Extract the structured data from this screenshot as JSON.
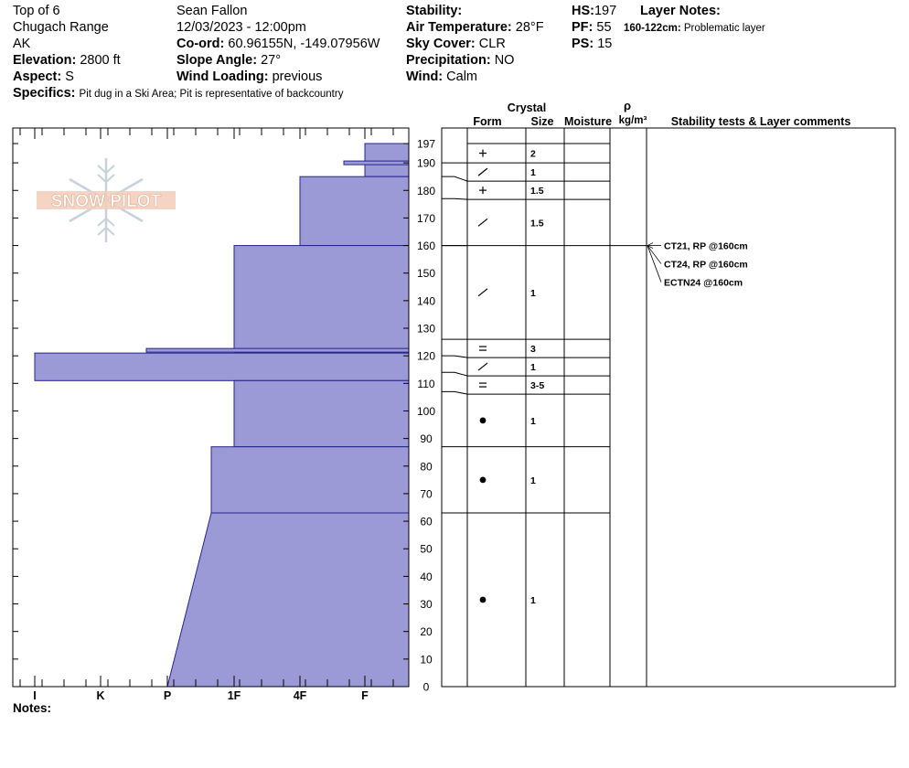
{
  "header": {
    "location": "Top of 6",
    "range": "Chugach Range",
    "state": "AK",
    "elevation_label": "Elevation:",
    "elevation": "2800 ft",
    "aspect_label": "Aspect:",
    "aspect": "S",
    "specifics_label": "Specifics:",
    "specifics": "Pit dug in a Ski Area; Pit is representative of backcountry",
    "observer": "Sean Fallon",
    "datetime": "12/03/2023 - 12:00pm",
    "coord_label": "Co-ord:",
    "coord": "60.96155N, -149.07956W",
    "slope_label": "Slope Angle:",
    "slope": "27°",
    "wind_loading_label": "Wind Loading:",
    "wind_loading": "previous",
    "stability_label": "Stability:",
    "stability": "",
    "air_temp_label": "Air Temperature:",
    "air_temp": "28°F",
    "sky_label": "Sky Cover:",
    "sky": "CLR",
    "precip_label": "Precipitation:",
    "precip": "NO",
    "wind_label": "Wind:",
    "wind": "Calm",
    "hs_label": "HS:",
    "hs": "197",
    "pf_label": "PF:",
    "pf": "55",
    "ps_label": "PS:",
    "ps": "15",
    "layer_notes_label": "Layer Notes:",
    "layer_note_range": "160-122cm:",
    "layer_note_text": "Problematic layer"
  },
  "logo_text": "SNOW PILOT",
  "notes_label": "Notes:",
  "columns": {
    "crystal": "Crystal",
    "form": "Form",
    "size": "Size",
    "moisture": "Moisture",
    "density_symbol": "ρ",
    "density_unit": "kg/m³",
    "stability": "Stability tests & Layer comments"
  },
  "hardness_profile": [
    {
      "top": 197,
      "bottom": 185,
      "hardness": "F"
    },
    {
      "top": 185,
      "bottom": 160,
      "hardness": "4F"
    },
    {
      "top": 160,
      "bottom": 121,
      "hardness": "1F"
    },
    {
      "top": 121,
      "bottom": 111,
      "hardness": "I"
    },
    {
      "top": 111,
      "bottom": 87,
      "hardness": "1F"
    },
    {
      "top": 87,
      "bottom": 63,
      "hardness": "1F-"
    },
    {
      "top": 63,
      "bottom": 0,
      "hardness_top": "1F-",
      "hardness_bottom": "P"
    }
  ],
  "thin_layers": [
    {
      "height": 190,
      "hardness": "4F+"
    },
    {
      "height": 122,
      "hardness": "P+"
    }
  ],
  "chart_data": {
    "type": "snow-profile",
    "y_axis": {
      "min": 0,
      "max": 197,
      "ticks": [
        0,
        10,
        20,
        30,
        40,
        50,
        60,
        70,
        80,
        90,
        100,
        110,
        120,
        130,
        140,
        150,
        160,
        170,
        180,
        190,
        197
      ]
    },
    "x_axis": {
      "ticks": [
        "I",
        "K",
        "P",
        "1F",
        "4F",
        "F"
      ]
    },
    "layers": [
      {
        "top": 197,
        "bottom": 190,
        "form": "+",
        "size": "2"
      },
      {
        "top": 190,
        "bottom": 185,
        "form": "/",
        "size": "1"
      },
      {
        "top": 185,
        "bottom": 177,
        "form": "+",
        "size": "1.5"
      },
      {
        "top": 177,
        "bottom": 160,
        "form": "/",
        "size": "1.5"
      },
      {
        "top": 160,
        "bottom": 126,
        "form": "/",
        "size": "1"
      },
      {
        "top": 126,
        "bottom": 120,
        "form": "=",
        "size": "3"
      },
      {
        "top": 120,
        "bottom": 114,
        "form": "/",
        "size": "1"
      },
      {
        "top": 114,
        "bottom": 107,
        "form": "=",
        "size": "3-5"
      },
      {
        "top": 107,
        "bottom": 87,
        "form": "●",
        "size": "1"
      },
      {
        "top": 87,
        "bottom": 63,
        "form": "●",
        "size": "1"
      },
      {
        "top": 63,
        "bottom": 0,
        "form": "●",
        "size": "1"
      }
    ],
    "stability_tests": [
      {
        "label": "CT21, RP @160cm",
        "height": 160
      },
      {
        "label": "CT24, RP @160cm",
        "height": 160
      },
      {
        "label": "ECTN24 @160cm",
        "height": 160
      }
    ]
  }
}
